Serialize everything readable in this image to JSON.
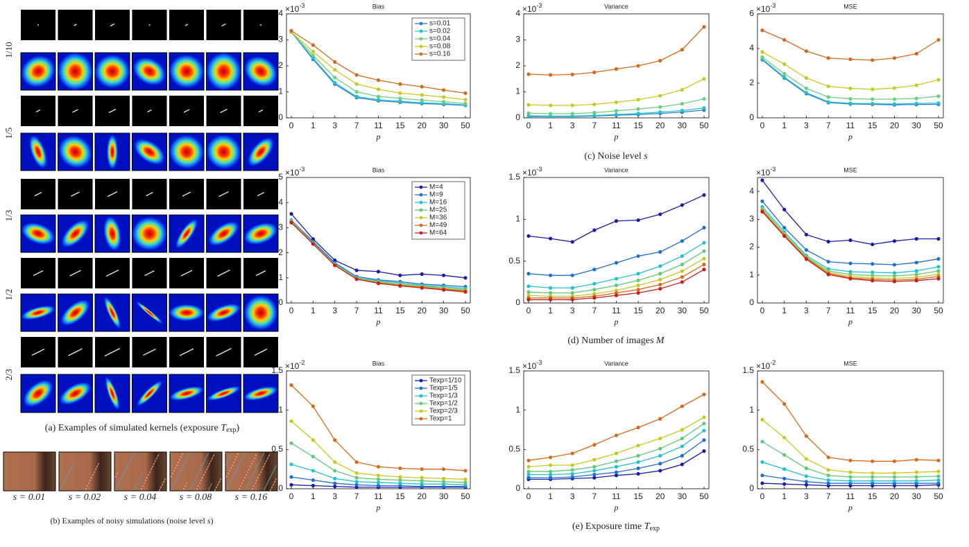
{
  "figure_a": {
    "row_labels": [
      "1/10",
      "1/5",
      "1/3",
      "1/2",
      "2/3"
    ],
    "caption": [
      "(a) Examples of simulated kernels (exposure ",
      "T",
      "exp",
      ")"
    ]
  },
  "figure_b": {
    "labels": [
      "s = 0.01",
      "s = 0.02",
      "s = 0.04",
      "s = 0.08",
      "s = 0.16"
    ],
    "caption": [
      "(b) Examples of noisy simulations (noise level ",
      "s",
      ")"
    ]
  },
  "row_captions": [
    [
      "(c) Noise level ",
      "s"
    ],
    [
      "(d) Number of images ",
      "M"
    ],
    [
      "(e) Exposure time ",
      "T",
      "exp"
    ]
  ],
  "chart_data": [
    {
      "type": "line",
      "title": "Bias",
      "categories": [
        "0",
        "1",
        "3",
        "7",
        "11",
        "15",
        "20",
        "30",
        "50"
      ],
      "x_label": "p",
      "ylim": [
        0,
        4
      ],
      "yticks": [
        0,
        1,
        2,
        3,
        4
      ],
      "y_multiplier": [
        "×10",
        "-3"
      ],
      "legend": "upper right",
      "series": [
        {
          "name": "s=0.01",
          "color": "#2a78d2",
          "values": [
            3.3,
            2.25,
            1.3,
            0.78,
            0.66,
            0.6,
            0.55,
            0.52,
            0.48
          ]
        },
        {
          "name": "s=0.02",
          "color": "#22c4c8",
          "values": [
            3.3,
            2.3,
            1.35,
            0.82,
            0.7,
            0.64,
            0.58,
            0.55,
            0.5
          ]
        },
        {
          "name": "s=0.04",
          "color": "#6ccd80",
          "values": [
            3.3,
            2.4,
            1.55,
            1.0,
            0.82,
            0.75,
            0.68,
            0.62,
            0.55
          ]
        },
        {
          "name": "s=0.08",
          "color": "#c8c822",
          "values": [
            3.3,
            2.55,
            1.85,
            1.3,
            1.1,
            0.95,
            0.88,
            0.8,
            0.7
          ]
        },
        {
          "name": "s=0.16",
          "color": "#d2691e",
          "values": [
            3.35,
            2.8,
            2.15,
            1.65,
            1.45,
            1.3,
            1.2,
            1.07,
            0.95
          ]
        }
      ]
    },
    {
      "type": "line",
      "title": "Variance",
      "categories": [
        "0",
        "1",
        "3",
        "7",
        "11",
        "15",
        "20",
        "30",
        "50"
      ],
      "x_label": "p",
      "ylim": [
        0,
        4
      ],
      "yticks": [
        0,
        1,
        2,
        3,
        4
      ],
      "y_multiplier": [
        "×10",
        "-3"
      ],
      "series": [
        {
          "color": "#2a78d2",
          "values": [
            0.05,
            0.05,
            0.05,
            0.07,
            0.1,
            0.13,
            0.17,
            0.22,
            0.3
          ]
        },
        {
          "color": "#22c4c8",
          "values": [
            0.08,
            0.07,
            0.07,
            0.09,
            0.13,
            0.17,
            0.22,
            0.28,
            0.38
          ]
        },
        {
          "color": "#6ccd80",
          "values": [
            0.18,
            0.16,
            0.16,
            0.2,
            0.27,
            0.34,
            0.42,
            0.54,
            0.73
          ]
        },
        {
          "color": "#c8c822",
          "values": [
            0.5,
            0.48,
            0.48,
            0.52,
            0.6,
            0.7,
            0.85,
            1.08,
            1.5
          ]
        },
        {
          "color": "#d2691e",
          "values": [
            1.68,
            1.65,
            1.67,
            1.75,
            1.88,
            2.0,
            2.2,
            2.62,
            3.5
          ]
        }
      ]
    },
    {
      "type": "line",
      "title": "MSE",
      "categories": [
        "0",
        "1",
        "3",
        "7",
        "11",
        "15",
        "20",
        "30",
        "50"
      ],
      "x_label": "p",
      "ylim": [
        0,
        6
      ],
      "yticks": [
        0,
        2,
        4,
        6
      ],
      "y_multiplier": [
        "×10",
        "-3"
      ],
      "series": [
        {
          "color": "#2a78d2",
          "values": [
            3.35,
            2.3,
            1.4,
            0.88,
            0.8,
            0.78,
            0.75,
            0.77,
            0.78
          ]
        },
        {
          "color": "#22c4c8",
          "values": [
            3.4,
            2.35,
            1.45,
            0.92,
            0.84,
            0.82,
            0.8,
            0.83,
            0.85
          ]
        },
        {
          "color": "#6ccd80",
          "values": [
            3.5,
            2.55,
            1.7,
            1.2,
            1.1,
            1.08,
            1.08,
            1.12,
            1.25
          ]
        },
        {
          "color": "#c8c822",
          "values": [
            3.8,
            3.1,
            2.3,
            1.82,
            1.7,
            1.65,
            1.72,
            1.88,
            2.2
          ]
        },
        {
          "color": "#d2691e",
          "values": [
            5.05,
            4.5,
            3.85,
            3.45,
            3.38,
            3.33,
            3.45,
            3.7,
            4.5
          ]
        }
      ]
    },
    {
      "type": "line",
      "title": "Bias",
      "categories": [
        "0",
        "1",
        "3",
        "7",
        "11",
        "15",
        "20",
        "30",
        "50"
      ],
      "x_label": "p",
      "ylim": [
        0,
        5
      ],
      "yticks": [
        0,
        1,
        2,
        3,
        4,
        5
      ],
      "y_multiplier": [
        "×10",
        "-3"
      ],
      "legend": "upper right",
      "series": [
        {
          "name": "M=4",
          "color": "#1a1aa6",
          "values": [
            3.55,
            2.55,
            1.7,
            1.3,
            1.25,
            1.1,
            1.15,
            1.1,
            1.0
          ]
        },
        {
          "name": "M=9",
          "color": "#1f6fd0",
          "values": [
            3.3,
            2.45,
            1.6,
            1.05,
            0.92,
            0.85,
            0.75,
            0.7,
            0.65
          ]
        },
        {
          "name": "M=16",
          "color": "#22c0d0",
          "values": [
            3.28,
            2.4,
            1.55,
            1.0,
            0.88,
            0.8,
            0.7,
            0.65,
            0.58
          ]
        },
        {
          "name": "M=25",
          "color": "#60c878",
          "values": [
            3.25,
            2.38,
            1.53,
            0.98,
            0.85,
            0.75,
            0.67,
            0.6,
            0.53
          ]
        },
        {
          "name": "M=36",
          "color": "#c8c822",
          "values": [
            3.25,
            2.37,
            1.52,
            0.97,
            0.82,
            0.72,
            0.64,
            0.57,
            0.5
          ]
        },
        {
          "name": "M=49",
          "color": "#d66a1a",
          "values": [
            3.22,
            2.36,
            1.5,
            0.95,
            0.8,
            0.7,
            0.62,
            0.55,
            0.47
          ]
        },
        {
          "name": "M=64",
          "color": "#c81e1e",
          "values": [
            3.2,
            2.35,
            1.5,
            0.95,
            0.78,
            0.68,
            0.6,
            0.52,
            0.44
          ]
        }
      ]
    },
    {
      "type": "line",
      "title": "Variance",
      "categories": [
        "0",
        "1",
        "3",
        "7",
        "11",
        "15",
        "20",
        "30",
        "50"
      ],
      "x_label": "p",
      "ylim": [
        0,
        1.5
      ],
      "yticks": [
        0,
        0.5,
        1,
        1.5
      ],
      "y_multiplier": [
        "×10",
        "-3"
      ],
      "series": [
        {
          "color": "#1a1aa6",
          "values": [
            0.8,
            0.77,
            0.73,
            0.87,
            0.98,
            0.99,
            1.06,
            1.17,
            1.29
          ]
        },
        {
          "color": "#1f6fd0",
          "values": [
            0.35,
            0.33,
            0.33,
            0.4,
            0.48,
            0.56,
            0.61,
            0.74,
            0.9
          ]
        },
        {
          "color": "#22c0d0",
          "values": [
            0.2,
            0.18,
            0.18,
            0.23,
            0.29,
            0.35,
            0.44,
            0.56,
            0.72
          ]
        },
        {
          "color": "#60c878",
          "values": [
            0.13,
            0.12,
            0.12,
            0.16,
            0.21,
            0.27,
            0.35,
            0.46,
            0.62
          ]
        },
        {
          "color": "#c8c822",
          "values": [
            0.09,
            0.08,
            0.08,
            0.11,
            0.15,
            0.21,
            0.28,
            0.38,
            0.53
          ]
        },
        {
          "color": "#d66a1a",
          "values": [
            0.06,
            0.06,
            0.06,
            0.08,
            0.12,
            0.16,
            0.22,
            0.31,
            0.46
          ]
        },
        {
          "color": "#c81e1e",
          "values": [
            0.04,
            0.04,
            0.04,
            0.06,
            0.09,
            0.12,
            0.17,
            0.25,
            0.4
          ]
        }
      ]
    },
    {
      "type": "line",
      "title": "MSE",
      "categories": [
        "0",
        "1",
        "3",
        "7",
        "11",
        "15",
        "20",
        "30",
        "50"
      ],
      "x_label": "p",
      "ylim": [
        0,
        4.5
      ],
      "yticks": [
        0,
        1,
        2,
        3,
        4
      ],
      "y_multiplier": [
        "×10",
        "-3"
      ],
      "series": [
        {
          "color": "#1a1aa6",
          "values": [
            4.4,
            3.35,
            2.45,
            2.2,
            2.25,
            2.1,
            2.22,
            2.3,
            2.3
          ]
        },
        {
          "color": "#1f6fd0",
          "values": [
            3.65,
            2.7,
            1.9,
            1.48,
            1.42,
            1.4,
            1.37,
            1.45,
            1.58
          ]
        },
        {
          "color": "#22c0d0",
          "values": [
            3.45,
            2.55,
            1.7,
            1.22,
            1.12,
            1.1,
            1.08,
            1.15,
            1.3
          ]
        },
        {
          "color": "#60c878",
          "values": [
            3.38,
            2.48,
            1.65,
            1.15,
            1.02,
            0.98,
            0.97,
            1.02,
            1.15
          ]
        },
        {
          "color": "#c8c822",
          "values": [
            3.33,
            2.45,
            1.62,
            1.1,
            0.95,
            0.9,
            0.88,
            0.92,
            1.03
          ]
        },
        {
          "color": "#d66a1a",
          "values": [
            3.3,
            2.42,
            1.6,
            1.06,
            0.9,
            0.85,
            0.82,
            0.85,
            0.95
          ]
        },
        {
          "color": "#c81e1e",
          "values": [
            3.27,
            2.4,
            1.57,
            1.02,
            0.87,
            0.8,
            0.77,
            0.8,
            0.87
          ]
        }
      ]
    },
    {
      "type": "line",
      "title": "Bias",
      "categories": [
        "0",
        "1",
        "3",
        "7",
        "11",
        "15",
        "20",
        "30",
        "50"
      ],
      "x_label": "p",
      "ylim": [
        0,
        1.5
      ],
      "yticks": [
        0,
        0.5,
        1,
        1.5
      ],
      "y_multiplier": [
        "×10",
        "-2"
      ],
      "legend": "upper right",
      "series": [
        {
          "name": "Texp=1/10",
          "color": "#1a1aa6",
          "values": [
            0.05,
            0.04,
            0.03,
            0.02,
            0.02,
            0.02,
            0.02,
            0.02,
            0.02
          ]
        },
        {
          "name": "Texp=1/5",
          "color": "#1f6fd0",
          "values": [
            0.15,
            0.11,
            0.07,
            0.05,
            0.04,
            0.04,
            0.03,
            0.03,
            0.03
          ]
        },
        {
          "name": "Texp=1/3",
          "color": "#22c0d0",
          "values": [
            0.31,
            0.23,
            0.13,
            0.09,
            0.08,
            0.07,
            0.06,
            0.06,
            0.05
          ]
        },
        {
          "name": "Texp=1/2",
          "color": "#60c878",
          "values": [
            0.58,
            0.41,
            0.23,
            0.14,
            0.12,
            0.11,
            0.1,
            0.09,
            0.08
          ]
        },
        {
          "name": "Texp=2/3",
          "color": "#c8c822",
          "values": [
            0.86,
            0.62,
            0.34,
            0.2,
            0.17,
            0.15,
            0.14,
            0.13,
            0.12
          ]
        },
        {
          "name": "Texp=1",
          "color": "#d66a1a",
          "values": [
            1.32,
            1.05,
            0.62,
            0.34,
            0.28,
            0.26,
            0.25,
            0.25,
            0.23
          ]
        }
      ]
    },
    {
      "type": "line",
      "title": "Variance",
      "categories": [
        "0",
        "1",
        "3",
        "7",
        "11",
        "15",
        "20",
        "30",
        "50"
      ],
      "x_label": "p",
      "ylim": [
        0,
        1.5
      ],
      "yticks": [
        0,
        0.5,
        1,
        1.5
      ],
      "y_multiplier": [
        "×10",
        "-3"
      ],
      "series": [
        {
          "color": "#1a1aa6",
          "values": [
            0.12,
            0.12,
            0.13,
            0.14,
            0.17,
            0.19,
            0.23,
            0.31,
            0.48
          ]
        },
        {
          "color": "#1f6fd0",
          "values": [
            0.14,
            0.14,
            0.15,
            0.18,
            0.21,
            0.26,
            0.32,
            0.42,
            0.62
          ]
        },
        {
          "color": "#22c0d0",
          "values": [
            0.18,
            0.18,
            0.19,
            0.23,
            0.28,
            0.34,
            0.42,
            0.54,
            0.74
          ]
        },
        {
          "color": "#60c878",
          "values": [
            0.22,
            0.22,
            0.24,
            0.28,
            0.35,
            0.42,
            0.51,
            0.64,
            0.83
          ]
        },
        {
          "color": "#c8c822",
          "values": [
            0.28,
            0.3,
            0.3,
            0.37,
            0.45,
            0.55,
            0.64,
            0.75,
            0.91
          ]
        },
        {
          "color": "#d66a1a",
          "values": [
            0.36,
            0.4,
            0.45,
            0.56,
            0.68,
            0.78,
            0.89,
            1.05,
            1.2
          ]
        }
      ]
    },
    {
      "type": "line",
      "title": "MSE",
      "categories": [
        "0",
        "1",
        "3",
        "7",
        "11",
        "15",
        "20",
        "30",
        "50"
      ],
      "x_label": "p",
      "ylim": [
        0,
        1.5
      ],
      "yticks": [
        0,
        0.5,
        1,
        1.5
      ],
      "y_multiplier": [
        "×10",
        "-2"
      ],
      "series": [
        {
          "color": "#1a1aa6",
          "values": [
            0.07,
            0.06,
            0.05,
            0.04,
            0.04,
            0.04,
            0.04,
            0.04,
            0.05
          ]
        },
        {
          "color": "#1f6fd0",
          "values": [
            0.17,
            0.13,
            0.09,
            0.07,
            0.07,
            0.07,
            0.07,
            0.07,
            0.07
          ]
        },
        {
          "color": "#22c0d0",
          "values": [
            0.34,
            0.25,
            0.16,
            0.11,
            0.1,
            0.1,
            0.1,
            0.1,
            0.11
          ]
        },
        {
          "color": "#60c878",
          "values": [
            0.6,
            0.43,
            0.26,
            0.17,
            0.15,
            0.15,
            0.15,
            0.15,
            0.16
          ]
        },
        {
          "color": "#c8c822",
          "values": [
            0.88,
            0.65,
            0.38,
            0.24,
            0.21,
            0.2,
            0.2,
            0.21,
            0.22
          ]
        },
        {
          "color": "#d66a1a",
          "values": [
            1.36,
            1.08,
            0.67,
            0.4,
            0.36,
            0.35,
            0.35,
            0.37,
            0.36
          ]
        }
      ]
    }
  ]
}
